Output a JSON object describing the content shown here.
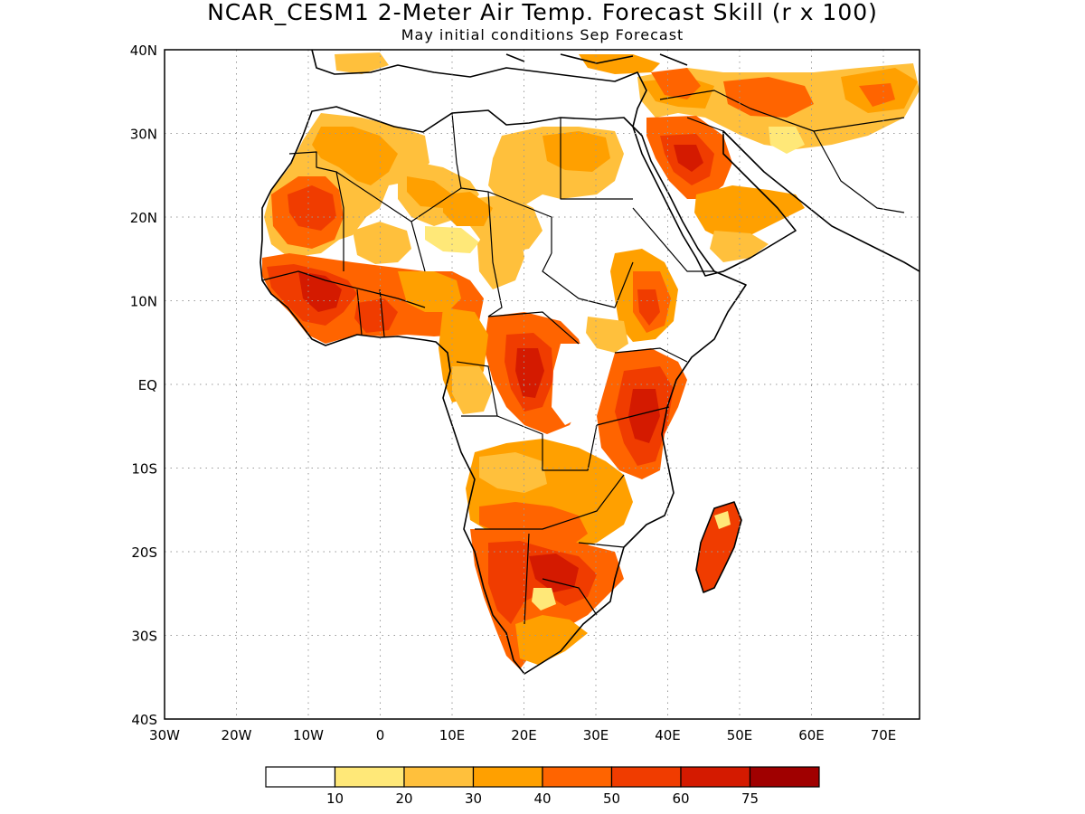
{
  "title": "NCAR_CESM1 2-Meter Air Temp. Forecast Skill (r x 100)",
  "subtitle": "May initial conditions  Sep Forecast",
  "axes": {
    "lon_labels": [
      "30W",
      "20W",
      "10W",
      "0",
      "10E",
      "20E",
      "30E",
      "40E",
      "50E",
      "60E",
      "70E"
    ],
    "lat_labels": [
      "40N",
      "30N",
      "20N",
      "10N",
      "EQ",
      "10S",
      "20S",
      "30S",
      "40S"
    ],
    "lon_range": [
      -30,
      75
    ],
    "lat_range": [
      -40,
      40
    ],
    "grid": true
  },
  "colorbar": {
    "labels": [
      "10",
      "20",
      "30",
      "40",
      "50",
      "60",
      "75"
    ],
    "colors": [
      "#ffffff",
      "#ffe878",
      "#ffc03c",
      "#ffa000",
      "#ff6400",
      "#f03c00",
      "#d41a00",
      "#a00000"
    ]
  }
}
